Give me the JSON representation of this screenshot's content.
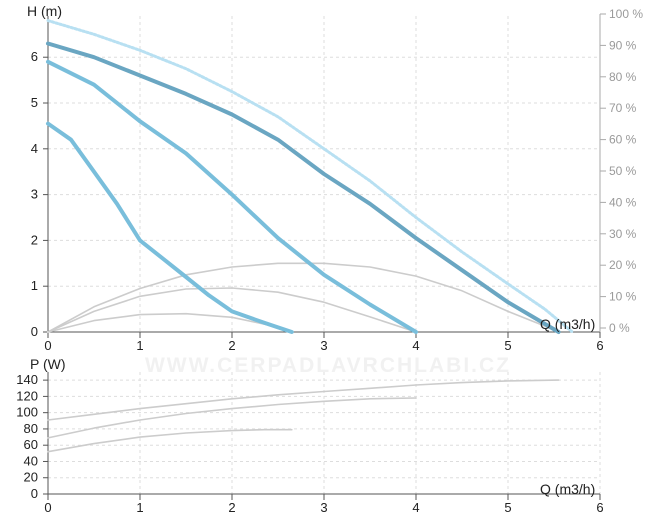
{
  "watermark": "WWW.CERPADLAVRCHLABI.CZ",
  "colors": {
    "grid": "#dddddd",
    "axis": "#555555",
    "hq_max": "#6aa6c2",
    "hq_other": "#79bedb",
    "efficiency": "#b8e0f2",
    "aux": "#cccccc"
  },
  "chart_data": [
    {
      "type": "line",
      "id": "hq",
      "ylabel": "H (m)",
      "xlabel": "Q (m3/h)",
      "xlim": [
        0,
        6
      ],
      "ylim": [
        0,
        6.9
      ],
      "x_ticks": [
        "0",
        "1",
        "2",
        "3",
        "4",
        "5",
        "6"
      ],
      "y_ticks": [
        "0",
        "1",
        "2",
        "3",
        "4",
        "5",
        "6"
      ],
      "y2_ticks": [
        "0 %",
        "10 %",
        "20 %",
        "30 %",
        "40 %",
        "50 %",
        "60 %",
        "70 %",
        "80 %",
        "90 %",
        "100 %"
      ],
      "series": [
        {
          "style": "max",
          "points": [
            [
              0,
              6.3
            ],
            [
              0.5,
              6.0
            ],
            [
              1,
              5.6
            ],
            [
              1.5,
              5.2
            ],
            [
              2,
              4.75
            ],
            [
              2.5,
              4.2
            ],
            [
              3,
              3.45
            ],
            [
              3.5,
              2.8
            ],
            [
              4,
              2.05
            ],
            [
              4.5,
              1.35
            ],
            [
              5,
              0.65
            ],
            [
              5.55,
              0
            ]
          ]
        },
        {
          "style": "other",
          "points": [
            [
              0,
              5.9
            ],
            [
              0.5,
              5.4
            ],
            [
              1,
              4.6
            ],
            [
              1.5,
              3.9
            ],
            [
              2,
              3.0
            ],
            [
              2.5,
              2.05
            ],
            [
              3,
              1.25
            ],
            [
              3.5,
              0.6
            ],
            [
              4,
              0
            ]
          ]
        },
        {
          "style": "other",
          "points": [
            [
              0,
              4.55
            ],
            [
              0.25,
              4.2
            ],
            [
              0.5,
              3.5
            ],
            [
              0.75,
              2.8
            ],
            [
              1,
              2.0
            ],
            [
              1.25,
              1.6
            ],
            [
              1.5,
              1.2
            ],
            [
              1.75,
              0.8
            ],
            [
              2,
              0.45
            ],
            [
              2.35,
              0.2
            ],
            [
              2.65,
              0
            ]
          ]
        },
        {
          "style": "efficiency",
          "points": [
            [
              0,
              6.8
            ],
            [
              0.5,
              6.5
            ],
            [
              1,
              6.15
            ],
            [
              1.5,
              5.75
            ],
            [
              2,
              5.25
            ],
            [
              2.5,
              4.7
            ],
            [
              3,
              4.0
            ],
            [
              3.5,
              3.3
            ],
            [
              4,
              2.5
            ],
            [
              4.5,
              1.75
            ],
            [
              5,
              1.05
            ],
            [
              5.4,
              0.5
            ],
            [
              5.7,
              0
            ]
          ]
        },
        {
          "style": "aux",
          "points": [
            [
              0,
              0
            ],
            [
              0.5,
              0.55
            ],
            [
              1,
              0.95
            ],
            [
              1.5,
              1.25
            ],
            [
              2,
              1.42
            ],
            [
              2.5,
              1.5
            ],
            [
              3,
              1.5
            ],
            [
              3.5,
              1.42
            ],
            [
              4,
              1.22
            ],
            [
              4.5,
              0.9
            ],
            [
              5,
              0.45
            ],
            [
              5.5,
              0.05
            ]
          ]
        },
        {
          "style": "aux",
          "points": [
            [
              0,
              0
            ],
            [
              0.5,
              0.45
            ],
            [
              1,
              0.78
            ],
            [
              1.5,
              0.94
            ],
            [
              2,
              0.96
            ],
            [
              2.5,
              0.87
            ],
            [
              3,
              0.65
            ],
            [
              3.5,
              0.33
            ],
            [
              4,
              0
            ]
          ]
        },
        {
          "style": "aux",
          "points": [
            [
              0,
              0
            ],
            [
              0.5,
              0.25
            ],
            [
              1,
              0.38
            ],
            [
              1.5,
              0.4
            ],
            [
              2,
              0.32
            ],
            [
              2.4,
              0.15
            ],
            [
              2.65,
              0
            ]
          ]
        }
      ]
    },
    {
      "type": "line",
      "id": "power",
      "ylabel": "P (W)",
      "xlabel": "Q (m3/h)",
      "xlim": [
        0,
        6
      ],
      "ylim": [
        0,
        150
      ],
      "x_ticks": [
        "0",
        "1",
        "2",
        "3",
        "4",
        "5",
        "6"
      ],
      "y_ticks": [
        "0",
        "20",
        "40",
        "60",
        "80",
        "100",
        "120",
        "140"
      ],
      "series": [
        {
          "style": "aux",
          "points": [
            [
              0,
              91
            ],
            [
              0.5,
              98
            ],
            [
              1,
              105
            ],
            [
              1.5,
              111
            ],
            [
              2,
              117
            ],
            [
              2.5,
              122
            ],
            [
              3,
              126
            ],
            [
              3.5,
              130
            ],
            [
              4,
              134
            ],
            [
              4.5,
              137
            ],
            [
              5,
              139
            ],
            [
              5.55,
              140
            ]
          ]
        },
        {
          "style": "aux",
          "points": [
            [
              0,
              69
            ],
            [
              0.5,
              81
            ],
            [
              1,
              91
            ],
            [
              1.5,
              99
            ],
            [
              2,
              105
            ],
            [
              2.5,
              110
            ],
            [
              3,
              114
            ],
            [
              3.5,
              117
            ],
            [
              4,
              118
            ]
          ]
        },
        {
          "style": "aux",
          "points": [
            [
              0,
              52
            ],
            [
              0.5,
              62
            ],
            [
              1,
              70
            ],
            [
              1.5,
              75
            ],
            [
              2,
              78
            ],
            [
              2.35,
              79
            ],
            [
              2.65,
              79
            ]
          ]
        }
      ]
    }
  ]
}
